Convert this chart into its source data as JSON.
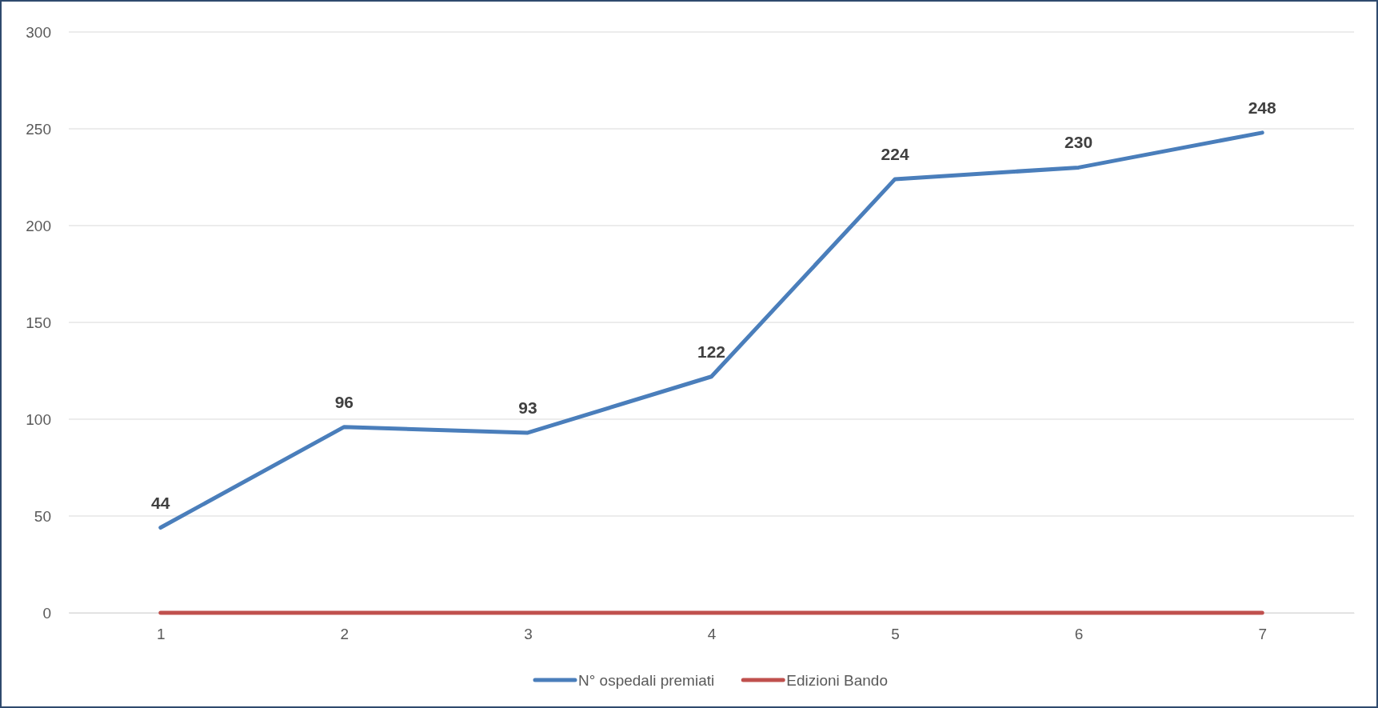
{
  "chart_data": {
    "type": "line",
    "categories": [
      "1",
      "2",
      "3",
      "4",
      "5",
      "6",
      "7"
    ],
    "series": [
      {
        "name": "N° ospedali premiati",
        "color": "#4a7ebb",
        "values": [
          44,
          96,
          93,
          122,
          224,
          230,
          248
        ],
        "value_labels": [
          "44",
          "96",
          "93",
          "122",
          "224",
          "230",
          "248"
        ]
      },
      {
        "name": "Edizioni Bando",
        "color": "#c0504d",
        "values": [
          0,
          0,
          0,
          0,
          0,
          0,
          0
        ]
      }
    ],
    "ylim": [
      0,
      300
    ],
    "yticks": [
      0,
      50,
      100,
      150,
      200,
      250,
      300
    ],
    "grid": "y",
    "legend": "bottom",
    "marker": "none",
    "line_style": "solid"
  }
}
